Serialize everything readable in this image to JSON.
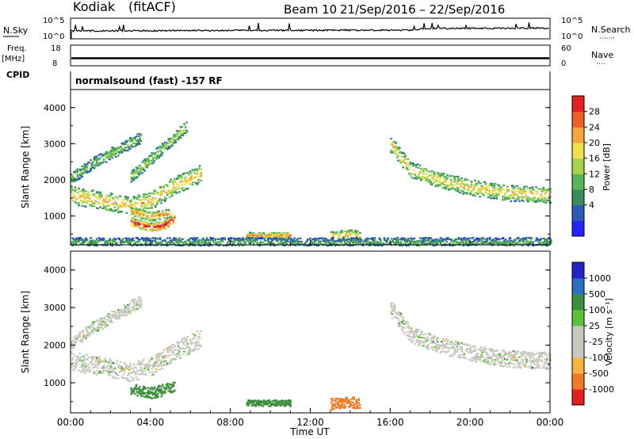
{
  "header": {
    "radar": "Kodiak",
    "fit": "(fitACF)",
    "beam": "Beam 10",
    "date_range": "21/Sep/2016 – 22/Sep/2016"
  },
  "nsky_panel": {
    "left_label": "N.Sky",
    "right_label": "N.Search",
    "left_ticks": [
      "10^5",
      "10^0"
    ],
    "right_ticks": [
      "10^5",
      "10^0"
    ],
    "right_legend": "·······"
  },
  "freq_panel": {
    "label_line1": "Freq.",
    "label_line2": "[MHz]",
    "left_ticks": [
      "18",
      "8"
    ],
    "right_label": "Nave",
    "right_ticks": [
      "60",
      "0"
    ],
    "right_legend": "····"
  },
  "cpid_panel": {
    "label": "CPID",
    "text": "normalsound (fast) -157 RF"
  },
  "chart_data": [
    {
      "type": "heatmap",
      "name": "power",
      "ylabel": "Slant Range [km]",
      "yticks": [
        "1000",
        "2000",
        "3000",
        "4000"
      ],
      "ylim": [
        200,
        4500
      ],
      "xlim": [
        0,
        24
      ],
      "colorbar_label": "Power [dB]",
      "colorbar_ticks": [
        "4",
        "8",
        "12",
        "16",
        "20",
        "24",
        "28"
      ],
      "colorbar_colors": [
        "#2323ff",
        "#2b59b8",
        "#3b8c5c",
        "#57b55a",
        "#a6d34a",
        "#f0e04a",
        "#f7a43c",
        "#f25f2c",
        "#e52020"
      ],
      "regions": [
        {
          "t0": 0.0,
          "t1": 6.5,
          "r": [
            [
              0.0,
              1600
            ],
            [
              1.5,
              1450
            ],
            [
              3.0,
              1300
            ],
            [
              4.0,
              1450
            ],
            [
              5.0,
              1800
            ],
            [
              6.5,
              2200
            ]
          ],
          "w": 250,
          "lvl": 0.62
        },
        {
          "t0": 0.0,
          "t1": 3.5,
          "r": [
            [
              0.0,
              2050
            ],
            [
              1.0,
              2450
            ],
            [
              2.5,
              2900
            ],
            [
              3.5,
              3200
            ]
          ],
          "w": 160,
          "lvl": 0.4
        },
        {
          "t0": 3.0,
          "t1": 5.8,
          "r": [
            [
              3.0,
              2100
            ],
            [
              4.0,
              2600
            ],
            [
              5.0,
              3100
            ],
            [
              5.8,
              3500
            ]
          ],
          "w": 160,
          "lvl": 0.45
        },
        {
          "t0": 3.0,
          "t1": 5.2,
          "r": [
            [
              3.0,
              850
            ],
            [
              4.0,
              700
            ],
            [
              4.6,
              750
            ],
            [
              5.2,
              950
            ]
          ],
          "w": 120,
          "lvl": 0.9
        },
        {
          "t0": 3.0,
          "t1": 5.0,
          "r": [
            [
              3.0,
              1150
            ],
            [
              4.0,
              1000
            ],
            [
              5.0,
              1100
            ]
          ],
          "w": 120,
          "lvl": 0.7
        },
        {
          "t0": 16.0,
          "t1": 24.0,
          "r": [
            [
              16.0,
              3000
            ],
            [
              17.0,
              2300
            ],
            [
              18.5,
              2000
            ],
            [
              20.0,
              1800
            ],
            [
              22.0,
              1650
            ],
            [
              24.0,
              1600
            ]
          ],
          "w": 220,
          "lvl": 0.58
        },
        {
          "t0": 8.8,
          "t1": 11.0,
          "r": [
            [
              8.8,
              480
            ],
            [
              11.0,
              480
            ]
          ],
          "w": 80,
          "lvl": 0.72
        },
        {
          "t0": 13.0,
          "t1": 14.5,
          "r": [
            [
              13.0,
              450
            ],
            [
              14.0,
              500
            ],
            [
              14.5,
              430
            ]
          ],
          "w": 150,
          "lvl": 0.6
        },
        {
          "t0": 0.0,
          "t1": 24.0,
          "r": [
            [
              0.0,
              280
            ],
            [
              24.0,
              280
            ]
          ],
          "w": 140,
          "lvl": 0.3
        }
      ]
    },
    {
      "type": "heatmap",
      "name": "velocity",
      "ylabel": "Slant Range [km]",
      "yticks": [
        "1000",
        "2000",
        "3000",
        "4000"
      ],
      "ylim": [
        200,
        4500
      ],
      "xlim": [
        0,
        24
      ],
      "xticks": [
        "00:00",
        "04:00",
        "08:00",
        "12:00",
        "16:00",
        "20:00",
        "00:00"
      ],
      "xlabel": "Time UT",
      "colorbar_label": "Velocity [m s⁻¹]",
      "colorbar_ticks": [
        "1000",
        "500",
        "100",
        "25",
        "-25",
        "-100",
        "-500",
        "-1000"
      ],
      "colorbar_colors": [
        "#2323cc",
        "#2b6fbf",
        "#3c8f3c",
        "#5cc23c",
        "#c8c8c0",
        "#c8c8c0",
        "#f7b43c",
        "#f27a24",
        "#e52020"
      ],
      "regions": [
        {
          "t0": 0.0,
          "t1": 6.5,
          "r": [
            [
              0.0,
              1600
            ],
            [
              1.5,
              1450
            ],
            [
              3.0,
              1300
            ],
            [
              4.0,
              1450
            ],
            [
              5.0,
              1800
            ],
            [
              6.5,
              2200
            ]
          ],
          "w": 250,
          "vel": 0
        },
        {
          "t0": 3.0,
          "t1": 5.2,
          "r": [
            [
              3.0,
              850
            ],
            [
              4.0,
              750
            ],
            [
              5.2,
              900
            ]
          ],
          "w": 150,
          "vel": 120
        },
        {
          "t0": 0.0,
          "t1": 3.5,
          "r": [
            [
              0.0,
              2050
            ],
            [
              1.0,
              2450
            ],
            [
              2.5,
              2900
            ],
            [
              3.5,
              3200
            ]
          ],
          "w": 160,
          "vel": 0
        },
        {
          "t0": 16.0,
          "t1": 24.0,
          "r": [
            [
              16.0,
              3000
            ],
            [
              17.0,
              2300
            ],
            [
              18.5,
              2000
            ],
            [
              20.0,
              1800
            ],
            [
              22.0,
              1650
            ],
            [
              24.0,
              1600
            ]
          ],
          "w": 220,
          "vel": 0
        },
        {
          "t0": 8.8,
          "t1": 11.0,
          "r": [
            [
              8.8,
              480
            ],
            [
              11.0,
              480
            ]
          ],
          "w": 80,
          "vel": 150
        },
        {
          "t0": 13.0,
          "t1": 14.5,
          "r": [
            [
              13.0,
              450
            ],
            [
              14.0,
              520
            ],
            [
              14.5,
              430
            ]
          ],
          "w": 150,
          "vel": -400
        }
      ]
    }
  ]
}
